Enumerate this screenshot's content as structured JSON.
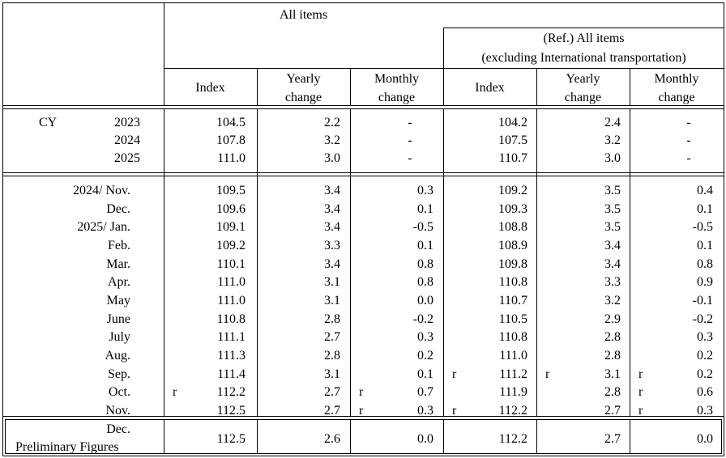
{
  "header": {
    "all_items": "All items",
    "ref_line1": "(Ref.) All items",
    "ref_line2": "(excluding International transportation)",
    "index": "Index",
    "yearly_line1": "Yearly",
    "yearly_line2": "change",
    "monthly_line1": "Monthly",
    "monthly_line2": "change"
  },
  "cy_label": "CY",
  "annual_rows": [
    {
      "label": "2023",
      "a_index": "104.5",
      "a_yearly": "2.2",
      "a_monthly": "-",
      "b_index": "104.2",
      "b_yearly": "2.4",
      "b_monthly": "-"
    },
    {
      "label": "2024",
      "a_index": "107.8",
      "a_yearly": "3.2",
      "a_monthly": "-",
      "b_index": "107.5",
      "b_yearly": "3.2",
      "b_monthly": "-"
    },
    {
      "label": "2025",
      "a_index": "111.0",
      "a_yearly": "3.0",
      "a_monthly": "-",
      "b_index": "110.7",
      "b_yearly": "3.0",
      "b_monthly": "-"
    }
  ],
  "monthly_rows": [
    {
      "label": "2024/ Nov.",
      "a_index": "109.5",
      "a_yearly": "3.4",
      "a_monthly": "0.3",
      "b_index": "109.2",
      "b_yearly": "3.5",
      "b_monthly": "0.4"
    },
    {
      "label": "Dec.",
      "a_index": "109.6",
      "a_yearly": "3.4",
      "a_monthly": "0.1",
      "b_index": "109.3",
      "b_yearly": "3.5",
      "b_monthly": "0.1"
    },
    {
      "label": "2025/ Jan.",
      "a_index": "109.1",
      "a_yearly": "3.4",
      "a_monthly": "-0.5",
      "b_index": "108.8",
      "b_yearly": "3.5",
      "b_monthly": "-0.5"
    },
    {
      "label": "Feb.",
      "a_index": "109.2",
      "a_yearly": "3.3",
      "a_monthly": "0.1",
      "b_index": "108.9",
      "b_yearly": "3.4",
      "b_monthly": "0.1"
    },
    {
      "label": "Mar.",
      "a_index": "110.1",
      "a_yearly": "3.4",
      "a_monthly": "0.8",
      "b_index": "109.8",
      "b_yearly": "3.4",
      "b_monthly": "0.8"
    },
    {
      "label": "Apr.",
      "a_index": "111.0",
      "a_yearly": "3.1",
      "a_monthly": "0.8",
      "b_index": "110.8",
      "b_yearly": "3.3",
      "b_monthly": "0.9"
    },
    {
      "label": "May",
      "a_index": "111.0",
      "a_yearly": "3.1",
      "a_monthly": "0.0",
      "b_index": "110.7",
      "b_yearly": "3.2",
      "b_monthly": "-0.1"
    },
    {
      "label": "June",
      "a_index": "110.8",
      "a_yearly": "2.8",
      "a_monthly": "-0.2",
      "b_index": "110.5",
      "b_yearly": "2.9",
      "b_monthly": "-0.2"
    },
    {
      "label": "July",
      "a_index": "111.1",
      "a_yearly": "2.7",
      "a_monthly": "0.3",
      "b_index": "110.8",
      "b_yearly": "2.8",
      "b_monthly": "0.3"
    },
    {
      "label": "Aug.",
      "a_index": "111.3",
      "a_yearly": "2.8",
      "a_monthly": "0.2",
      "b_index": "111.0",
      "b_yearly": "2.8",
      "b_monthly": "0.2"
    },
    {
      "label": "Sep.",
      "a_index": "111.4",
      "a_yearly": "3.1",
      "a_monthly": "0.1",
      "b_index": "111.2",
      "b_yearly": "3.1",
      "b_monthly": "0.2",
      "flags": {
        "b_index": "r",
        "b_yearly": "r",
        "b_monthly": "r"
      }
    },
    {
      "label": "Oct.",
      "a_index": "112.2",
      "a_yearly": "2.7",
      "a_monthly": "0.7",
      "b_index": "111.9",
      "b_yearly": "2.8",
      "b_monthly": "0.6",
      "flags": {
        "a_index": "r",
        "a_monthly": "r",
        "b_monthly": "r"
      }
    },
    {
      "label": "Nov.",
      "a_index": "112.5",
      "a_yearly": "2.7",
      "a_monthly": "0.3",
      "b_index": "112.2",
      "b_yearly": "2.7",
      "b_monthly": "0.3",
      "flags": {
        "a_monthly": "r",
        "b_index": "r",
        "b_monthly": "r"
      }
    }
  ],
  "prelim_row": {
    "label_line1": "Dec.",
    "label_line2": "Preliminary Figures",
    "a_index": "112.5",
    "a_yearly": "2.6",
    "a_monthly": "0.0",
    "b_index": "112.2",
    "b_yearly": "2.7",
    "b_monthly": "0.0"
  }
}
